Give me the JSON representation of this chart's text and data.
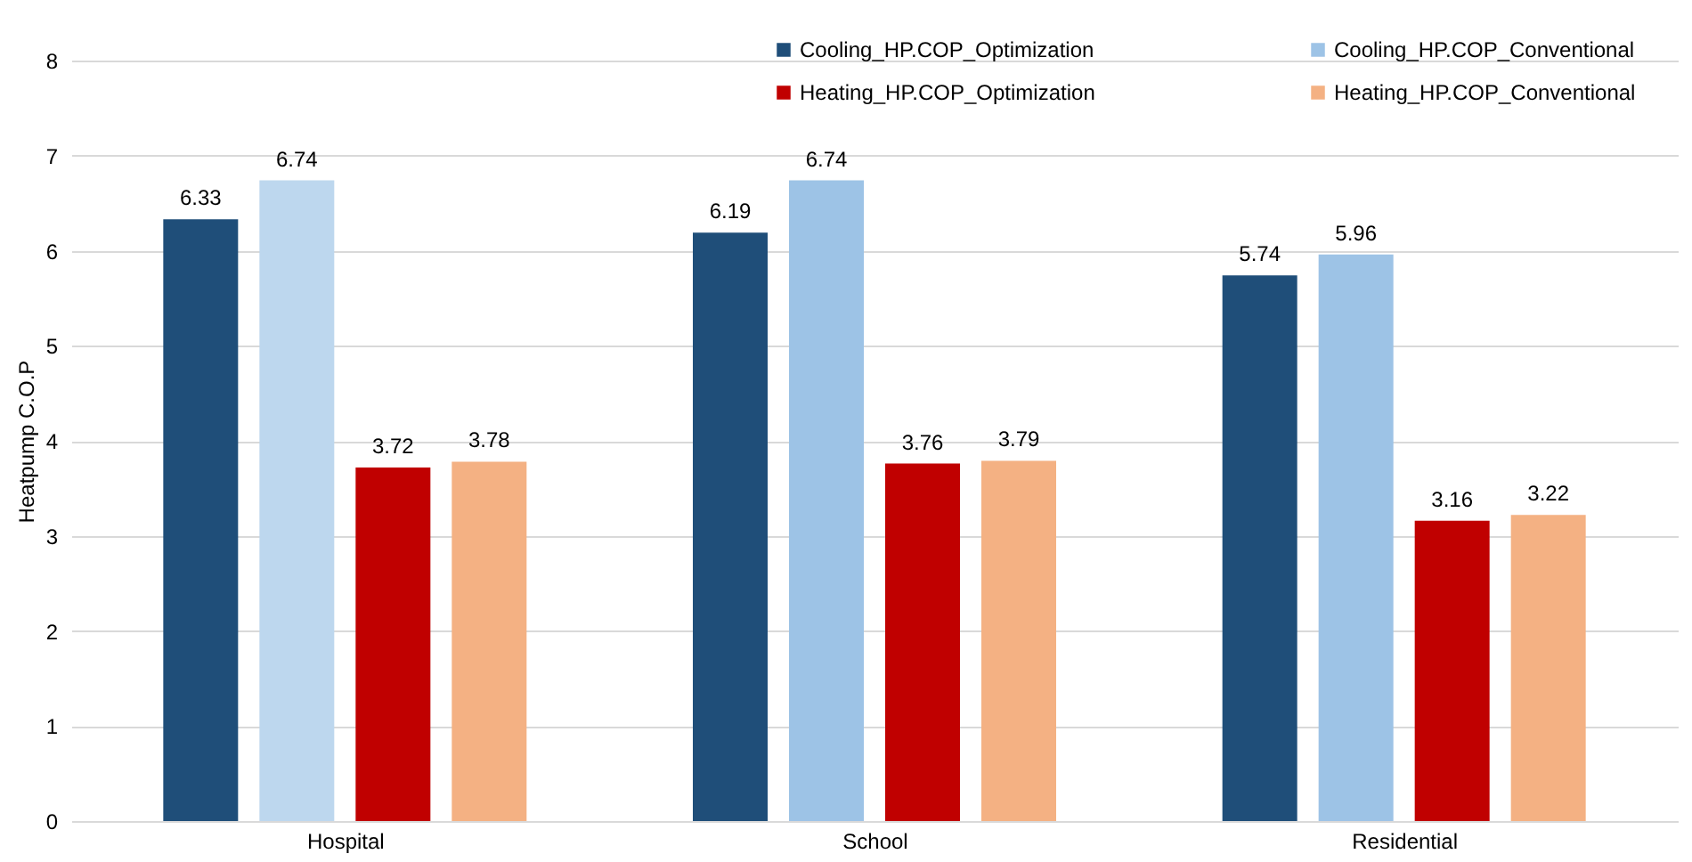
{
  "chart_data": {
    "type": "bar",
    "ylabel": "Heatpump C.O.P",
    "categories": [
      "Hospital",
      "School",
      "Residential"
    ],
    "series": [
      {
        "name": "Cooling_HP.COP_Optimization",
        "color": "#1f4e79",
        "values": [
          6.33,
          6.19,
          5.74
        ]
      },
      {
        "name": "Cooling_HP.COP_Conventional",
        "color": "#9dc3e6",
        "colors": [
          "#bdd7ee",
          "#9dc3e6",
          "#9dc3e6"
        ],
        "values": [
          6.74,
          6.74,
          5.96
        ]
      },
      {
        "name": "Heating_HP.COP_Optimization",
        "color": "#c00000",
        "values": [
          3.72,
          3.76,
          3.16
        ]
      },
      {
        "name": "Heating_HP.COP_Conventional",
        "color": "#f4b183",
        "values": [
          3.78,
          3.79,
          3.22
        ]
      }
    ],
    "ylim": [
      0,
      8
    ],
    "yticks": [
      0,
      1,
      2,
      3,
      4,
      5,
      6,
      7,
      8
    ],
    "grid": "y",
    "legend": "top right",
    "data_labels": true
  }
}
